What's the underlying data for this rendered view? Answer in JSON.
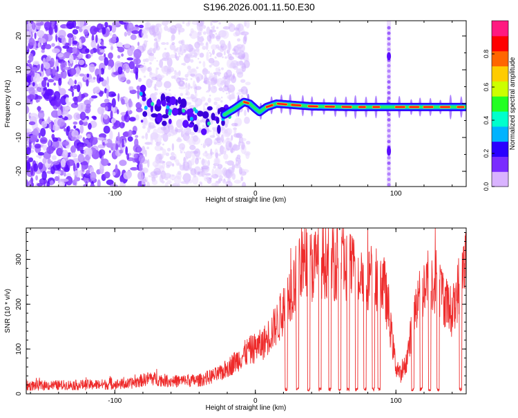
{
  "title": "S196.2026.001.11.50.E30",
  "chart_data": [
    {
      "type": "heatmap",
      "xlabel": "Height of straight line (km)",
      "ylabel": "Frequency (Hz)",
      "xlim": [
        -163,
        150
      ],
      "ylim": [
        -24.5,
        24.5
      ],
      "xticks": [
        -100,
        0,
        100
      ],
      "yticks": [
        -20,
        -10,
        0,
        10,
        20
      ],
      "colorbar": {
        "label": "Normalized spectral amplitude",
        "range": [
          0,
          1
        ],
        "ticks": [
          "0.0",
          "0.2",
          "0.4",
          "0.6",
          "0.8"
        ],
        "stops": [
          "#d9b3ff",
          "#7a2cff",
          "#2a00ff",
          "#00b3ff",
          "#00ffcc",
          "#22ff22",
          "#ccff00",
          "#ffcc00",
          "#ff6600",
          "#ff0000",
          "#ff1a80"
        ]
      },
      "signal_track_hz": [
        [
          -82,
          1.5
        ],
        [
          -75,
          -0.5
        ],
        [
          -60,
          -2.5
        ],
        [
          -45,
          -3.5
        ],
        [
          -35,
          -4.5
        ],
        [
          -25,
          -4
        ],
        [
          -15,
          -1.5
        ],
        [
          -8,
          0.5
        ],
        [
          -4,
          0
        ],
        [
          0,
          -1.5
        ],
        [
          3,
          -2.5
        ],
        [
          8,
          -1
        ],
        [
          15,
          0
        ],
        [
          40,
          -0.8
        ],
        [
          70,
          -1
        ],
        [
          95,
          -1
        ],
        [
          120,
          -1
        ],
        [
          150,
          -1
        ]
      ],
      "noise_extent_km": [
        -163,
        -80
      ],
      "vertical_streak_km": 95
    },
    {
      "type": "line",
      "xlabel": "Height of straight line (km)",
      "ylabel": "SNR (10 * v/v)",
      "xlim": [
        -163,
        150
      ],
      "ylim": [
        0,
        370
      ],
      "xticks": [
        -100,
        0,
        100
      ],
      "yticks": [
        0,
        100,
        200,
        300
      ],
      "series_color": "#ee2b2b",
      "envelope": [
        {
          "x": -163,
          "y": 18
        },
        {
          "x": -120,
          "y": 20
        },
        {
          "x": -90,
          "y": 22
        },
        {
          "x": -75,
          "y": 35
        },
        {
          "x": -60,
          "y": 28
        },
        {
          "x": -40,
          "y": 30
        },
        {
          "x": -25,
          "y": 45
        },
        {
          "x": -15,
          "y": 70
        },
        {
          "x": -5,
          "y": 95
        },
        {
          "x": 5,
          "y": 110
        },
        {
          "x": 12,
          "y": 140
        },
        {
          "x": 18,
          "y": 170
        },
        {
          "x": 22,
          "y": 210
        },
        {
          "x": 28,
          "y": 250
        },
        {
          "x": 32,
          "y": 295
        },
        {
          "x": 40,
          "y": 285
        },
        {
          "x": 50,
          "y": 300
        },
        {
          "x": 60,
          "y": 290
        },
        {
          "x": 70,
          "y": 275
        },
        {
          "x": 80,
          "y": 265
        },
        {
          "x": 88,
          "y": 260
        },
        {
          "x": 92,
          "y": 235
        },
        {
          "x": 96,
          "y": 150
        },
        {
          "x": 100,
          "y": 60
        },
        {
          "x": 104,
          "y": 40
        },
        {
          "x": 108,
          "y": 80
        },
        {
          "x": 112,
          "y": 160
        },
        {
          "x": 118,
          "y": 230
        },
        {
          "x": 124,
          "y": 260
        },
        {
          "x": 130,
          "y": 250
        },
        {
          "x": 136,
          "y": 200
        },
        {
          "x": 140,
          "y": 180
        },
        {
          "x": 144,
          "y": 230
        },
        {
          "x": 148,
          "y": 290
        },
        {
          "x": 150,
          "y": 300
        }
      ],
      "dropouts_km": [
        22,
        30,
        38,
        46,
        53,
        60,
        66,
        72,
        78,
        84,
        88,
        112,
        118,
        124,
        130,
        146
      ]
    }
  ]
}
